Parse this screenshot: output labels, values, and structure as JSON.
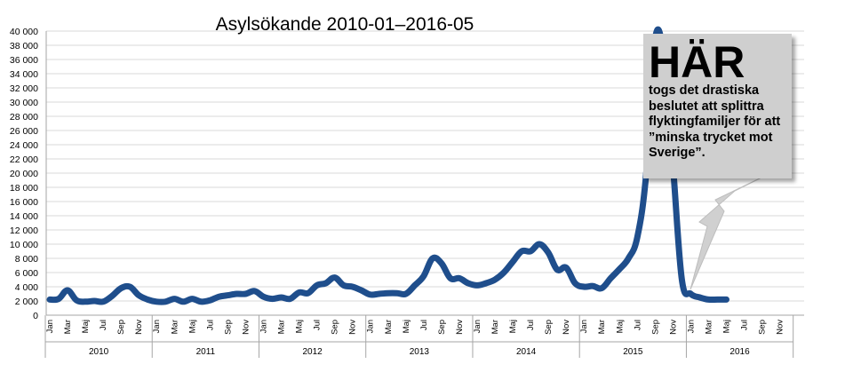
{
  "colors": {
    "line": "#1f4e8c",
    "grid": "#d9d9d9",
    "callout_bg": "#cfcfcf",
    "arrow": "#d0d0d0"
  },
  "callout": {
    "heading": "HÄR",
    "text": "togs det drastiska beslutet att splittra flyktingfamiljer för att ”minska trycket mot Sverige”."
  },
  "chart_data": {
    "type": "line",
    "title": "Asylsökande 2010-01–2016-05",
    "xlabel": "",
    "ylabel": "",
    "ylim": [
      0,
      40000
    ],
    "grid": true,
    "legend": "none",
    "y_ticks": [
      "0",
      "2 000",
      "4 000",
      "6 000",
      "8 000",
      "10 000",
      "12 000",
      "14 000",
      "16 000",
      "18 000",
      "20 000",
      "22 000",
      "24 000",
      "26 000",
      "28 000",
      "30 000",
      "32 000",
      "34 000",
      "36 000",
      "38 000",
      "40 000"
    ],
    "month_labels": [
      "Jan",
      "Mar",
      "Maj",
      "Jul",
      "Sep",
      "Nov"
    ],
    "years": [
      "2010",
      "2011",
      "2012",
      "2013",
      "2014",
      "2015",
      "2016"
    ],
    "x": [
      "2010-01",
      "2010-02",
      "2010-03",
      "2010-04",
      "2010-05",
      "2010-06",
      "2010-07",
      "2010-08",
      "2010-09",
      "2010-10",
      "2010-11",
      "2010-12",
      "2011-01",
      "2011-02",
      "2011-03",
      "2011-04",
      "2011-05",
      "2011-06",
      "2011-07",
      "2011-08",
      "2011-09",
      "2011-10",
      "2011-11",
      "2011-12",
      "2012-01",
      "2012-02",
      "2012-03",
      "2012-04",
      "2012-05",
      "2012-06",
      "2012-07",
      "2012-08",
      "2012-09",
      "2012-10",
      "2012-11",
      "2012-12",
      "2013-01",
      "2013-02",
      "2013-03",
      "2013-04",
      "2013-05",
      "2013-06",
      "2013-07",
      "2013-08",
      "2013-09",
      "2013-10",
      "2013-11",
      "2013-12",
      "2014-01",
      "2014-02",
      "2014-03",
      "2014-04",
      "2014-05",
      "2014-06",
      "2014-07",
      "2014-08",
      "2014-09",
      "2014-10",
      "2014-11",
      "2014-12",
      "2015-01",
      "2015-02",
      "2015-03",
      "2015-04",
      "2015-05",
      "2015-06",
      "2015-07",
      "2015-08",
      "2015-09",
      "2015-10",
      "2015-11",
      "2015-12",
      "2016-01",
      "2016-02",
      "2016-03",
      "2016-04",
      "2016-05"
    ],
    "values": [
      2200,
      2300,
      3500,
      2100,
      1900,
      2000,
      1900,
      2700,
      3800,
      4000,
      2800,
      2200,
      1900,
      1900,
      2300,
      1900,
      2300,
      1900,
      2100,
      2600,
      2800,
      3000,
      3000,
      3400,
      2600,
      2300,
      2500,
      2300,
      3200,
      3100,
      4200,
      4500,
      5300,
      4200,
      4000,
      3500,
      2900,
      3000,
      3100,
      3100,
      3000,
      4200,
      5500,
      8000,
      7300,
      5200,
      5200,
      4500,
      4200,
      4500,
      5000,
      6000,
      7500,
      9000,
      9000,
      10000,
      8800,
      6400,
      6700,
      4500,
      4000,
      4100,
      3800,
      5200,
      6500,
      8000,
      11000,
      20000,
      39000,
      36000,
      21000,
      5000,
      3000,
      2500,
      2200,
      2200,
      2200
    ]
  }
}
